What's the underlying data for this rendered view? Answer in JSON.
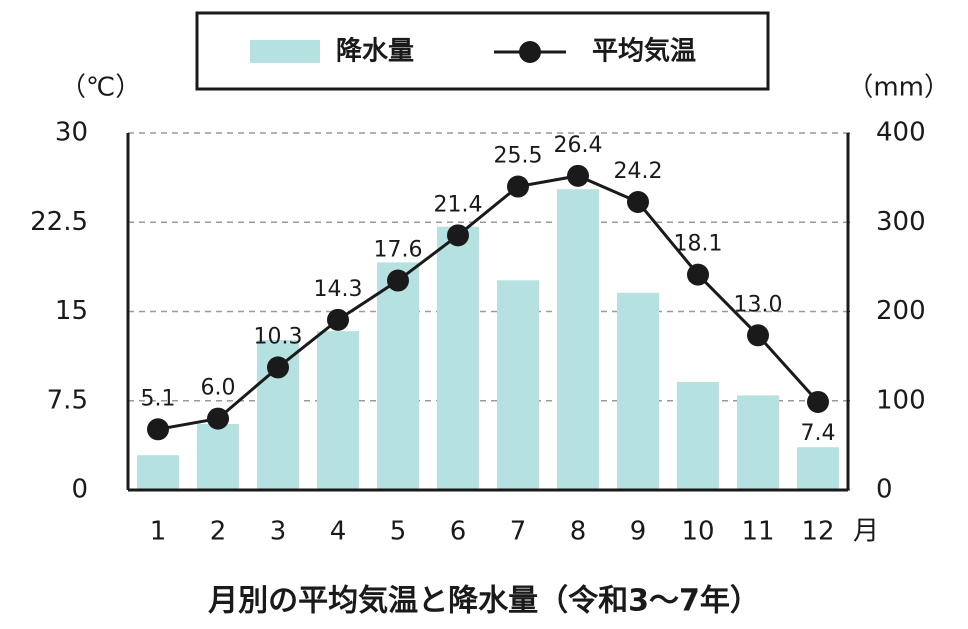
{
  "chart_data": {
    "type": "bar",
    "title": "月別の平均気温と降水量（令和3〜7年）",
    "categories": [
      "1",
      "2",
      "3",
      "4",
      "5",
      "6",
      "7",
      "8",
      "9",
      "10",
      "11",
      "12"
    ],
    "x_unit": "月",
    "y_label": "（℃）",
    "y2_label": "（mm）",
    "ylim": [
      0,
      30
    ],
    "yticks": [
      0,
      7.5,
      15,
      22.5,
      30
    ],
    "y2lim": [
      0,
      400
    ],
    "y2ticks": [
      0,
      100,
      200,
      300,
      400
    ],
    "grid": true,
    "legend": "top",
    "series": [
      {
        "name": "降水量",
        "type": "bar",
        "axis": "y2",
        "color": "#b6e1e1",
        "values": [
          39,
          74,
          168,
          178,
          255,
          295,
          235,
          337,
          221,
          121,
          106,
          48
        ]
      },
      {
        "name": "平均気温",
        "type": "line",
        "color": "#1a1a1a",
        "values": [
          5.1,
          6.0,
          10.3,
          14.3,
          17.6,
          21.4,
          25.5,
          26.4,
          24.2,
          18.1,
          13.0,
          7.4
        ],
        "value_labels": [
          "5.1",
          "6.0",
          "10.3",
          "14.3",
          "17.6",
          "21.4",
          "25.5",
          "26.4",
          "24.2",
          "18.1",
          "13.0",
          "7.4"
        ]
      }
    ]
  }
}
